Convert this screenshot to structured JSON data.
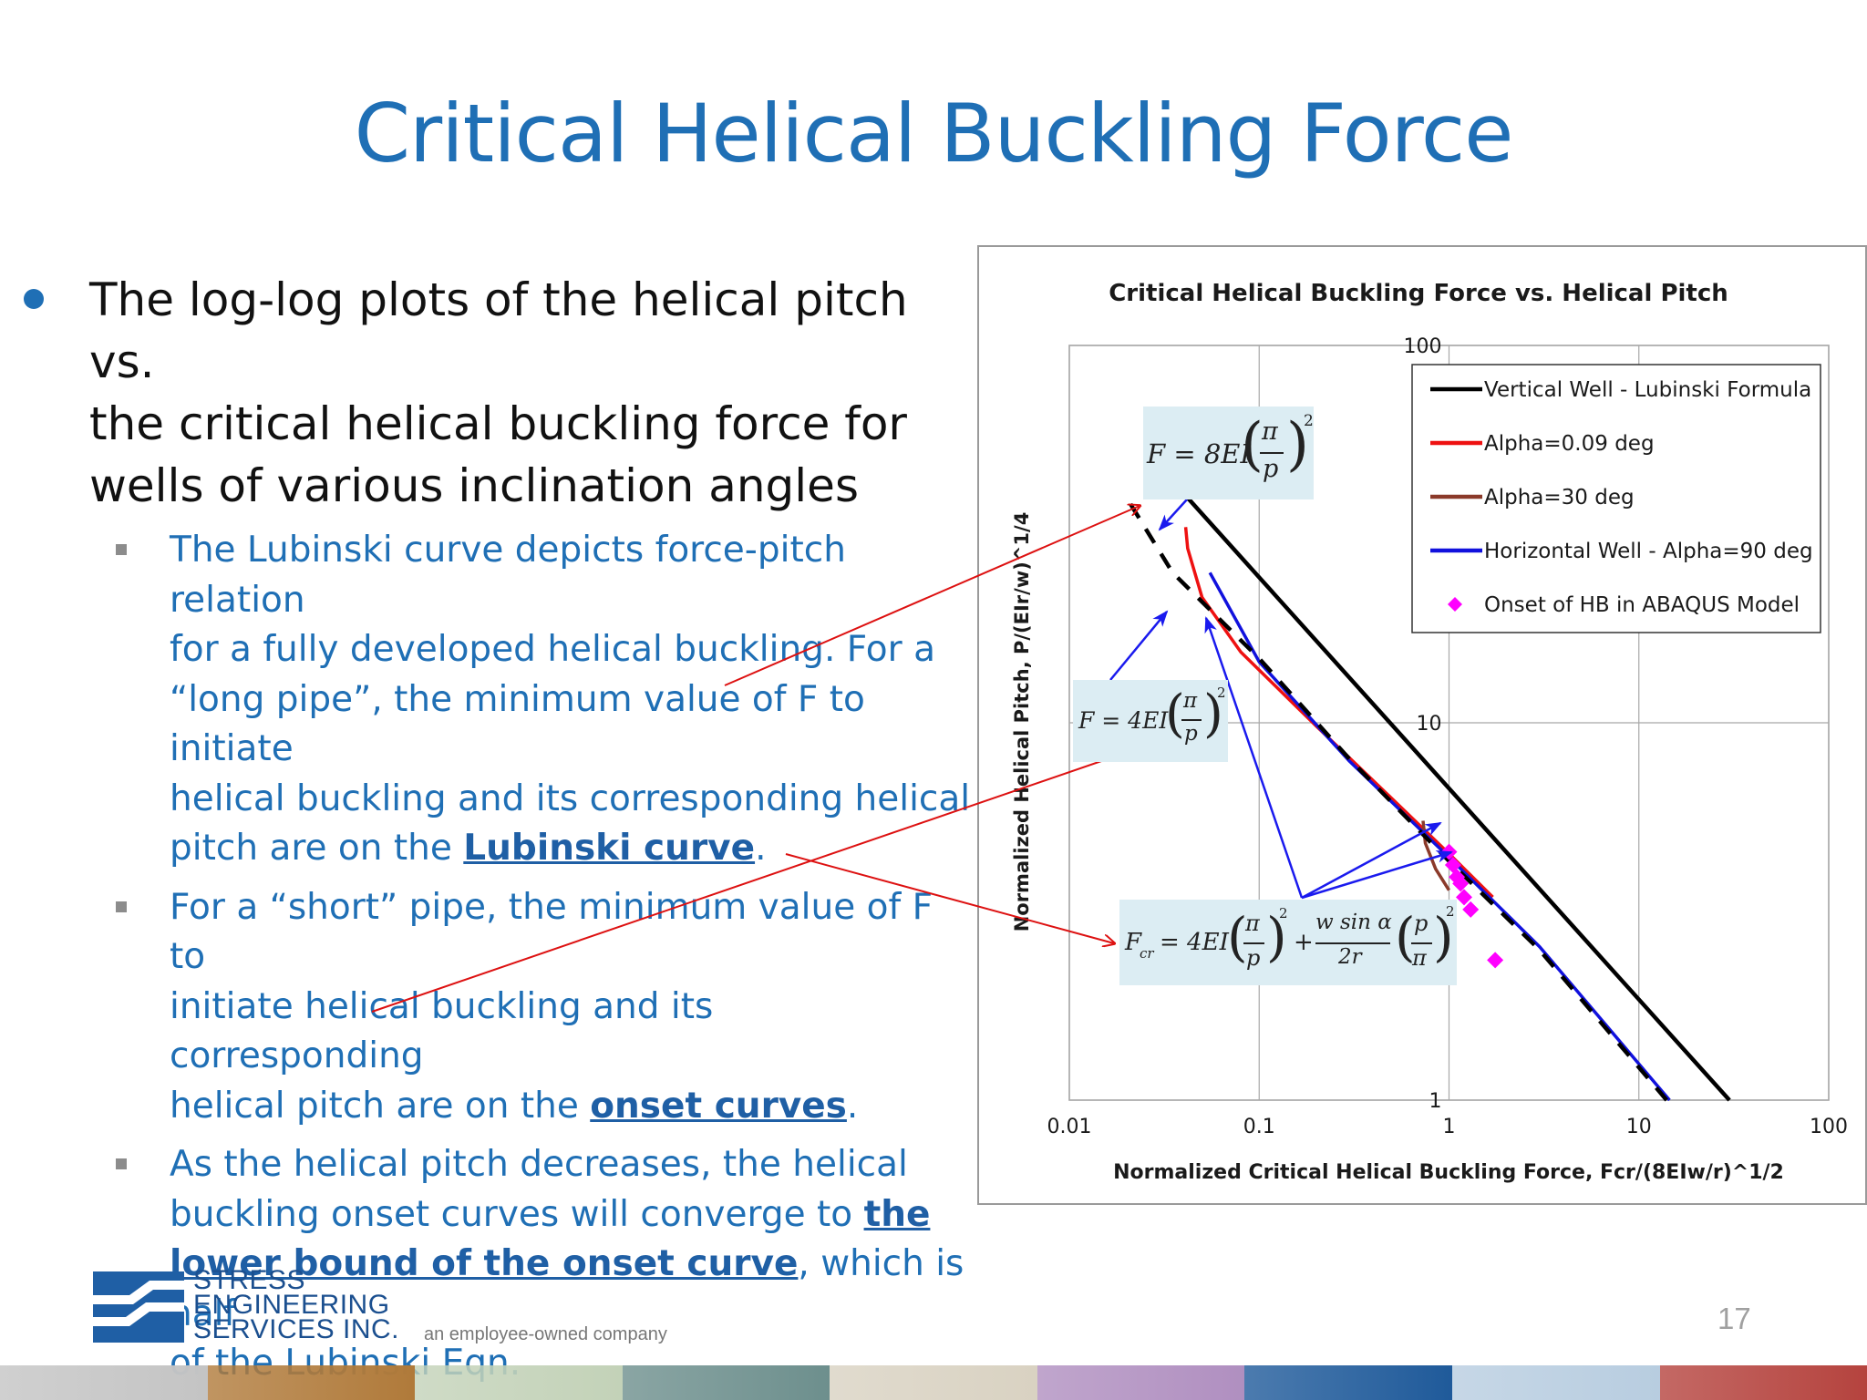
{
  "title": "Critical Helical Buckling Force",
  "bullet": {
    "line1": "The log-log plots of the helical pitch vs.",
    "line2": "the critical helical buckling force for",
    "line3": "wells of various inclination angles"
  },
  "sub1": {
    "l1": "The Lubinski curve depicts force-pitch relation",
    "l2": "for a fully developed helical buckling. For a",
    "l3": "“long pipe”, the minimum value of F to initiate",
    "l4": "helical buckling and its corresponding helical",
    "l5_pre": "pitch are on the ",
    "l5_hl": "Lubinski curve",
    "l5_post": "."
  },
  "sub2": {
    "l1": "For a “short” pipe, the minimum value of F to",
    "l2": "initiate helical buckling and its corresponding",
    "l3_pre": "helical pitch are on the ",
    "l3_hl": "onset curves",
    "l3_post": "."
  },
  "sub3": {
    "l1": "As the helical pitch decreases, the helical",
    "l2_pre": "buckling onset curves will converge to ",
    "l2_hl": "the",
    "l3_hl": "lower bound of the onset curve",
    "l3_post": ", which is half",
    "l4": "of the Lubinski Eqn."
  },
  "formulas": {
    "f1_lhs": "F = 8EI",
    "f2_lhs": "F = 4EI",
    "f3_lhs": "F",
    "f3_sub": "cr",
    "f3_mid": "= 4EI",
    "pi": "π",
    "p": "p",
    "exp": "2",
    "wsin": "w sin α",
    "two_r": "2r",
    "plus": "+"
  },
  "chart_data": {
    "type": "line",
    "title": "Critical Helical Buckling Force vs. Helical Pitch",
    "xlabel": "Normalized Critical Helical Buckling Force, Fcr/(8EIw/r)^1/2",
    "ylabel": "Normalized Helical Pitch, P/(EIr/w)^1/4",
    "x_scale": "log",
    "y_scale": "log",
    "xlim": [
      0.01,
      100
    ],
    "ylim": [
      1,
      100
    ],
    "x_ticks": [
      "0.01",
      "0.1",
      "1",
      "10",
      "100"
    ],
    "y_ticks": [
      "1",
      "10",
      "100"
    ],
    "grid": true,
    "legend_position": "top-right",
    "series": [
      {
        "name": "Vertical Well - Lubinski Formula",
        "color": "#000000",
        "style": "solid",
        "x": [
          0.0275,
          30
        ],
        "y": [
          50,
          1
        ]
      },
      {
        "name": "Alpha=0.09 deg",
        "color": "#ee1111",
        "style": "solid",
        "x": [
          0.041,
          0.042,
          0.05,
          0.08,
          0.2,
          0.5,
          1.0,
          1.7
        ],
        "y": [
          33,
          29,
          21.5,
          15.4,
          9.8,
          6.3,
          4.5,
          3.45
        ]
      },
      {
        "name": "Alpha=30 deg",
        "color": "#8b3a2a",
        "style": "solid",
        "x": [
          0.73,
          0.75,
          0.85,
          1.0
        ],
        "y": [
          5.5,
          4.8,
          4.1,
          3.6
        ]
      },
      {
        "name": "Horizontal Well - Alpha=90 deg",
        "color": "#1111dd",
        "style": "solid",
        "x": [
          0.055,
          0.1,
          0.3,
          1.0,
          3.0,
          14.5
        ],
        "y": [
          25,
          14.5,
          7.9,
          4.4,
          2.55,
          1
        ]
      },
      {
        "name": "",
        "color": "#000000",
        "style": "dashed",
        "x": [
          0.021,
          0.035,
          0.1,
          0.3,
          1.0,
          3.0,
          14.0
        ],
        "y": [
          38,
          25,
          14.8,
          8.0,
          4.3,
          2.5,
          1
        ]
      },
      {
        "name": "Onset of HB in ABAQUS Model",
        "color": "#ff00ff",
        "style": "marker",
        "x": [
          1.0,
          1.05,
          1.1,
          1.15,
          1.2,
          1.3,
          1.75
        ],
        "y": [
          4.55,
          4.2,
          3.9,
          3.75,
          3.45,
          3.2,
          2.35
        ]
      }
    ]
  },
  "logo": {
    "line1": "STRESS",
    "line2": "ENGINEERING",
    "line3": "SERVICES INC.",
    "tagline": "an employee-owned company"
  },
  "page_number": "17",
  "colors": {
    "title": "#1f6fb5",
    "subtext": "#1f6fb5",
    "formula_bg": "#dcedf3",
    "annotation_red": "#dd1111",
    "annotation_blue": "#1a1aee"
  },
  "bottom_bar": [
    "#c4c4c4",
    "#b07a3a",
    "#c3d2b8",
    "#6d8f8d",
    "#d9d2c2",
    "#b08fc0",
    "#1f5a9a",
    "#b8cde0",
    "#b5433e"
  ]
}
